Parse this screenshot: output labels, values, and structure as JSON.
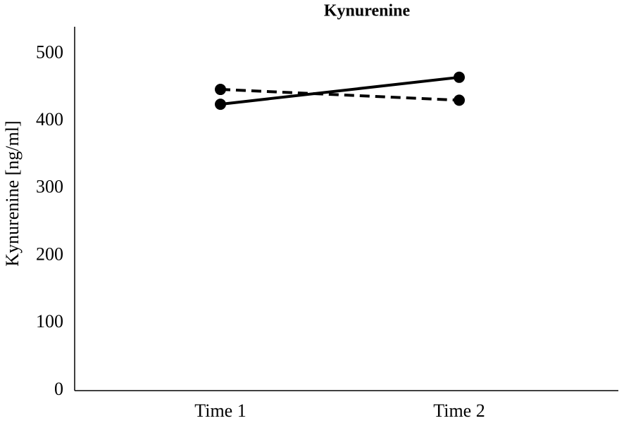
{
  "chart_data": {
    "type": "line",
    "title": "Kynurenine",
    "ylabel": "Kynurenine [ng/ml]",
    "categories": [
      "Time 1",
      "Time 2"
    ],
    "series": [
      {
        "color": "#000000",
        "dashed": false,
        "values": [
          425,
          465
        ]
      },
      {
        "color": "#000000",
        "dashed": true,
        "values": [
          447,
          431
        ]
      }
    ],
    "ylim": [
      0,
      540
    ],
    "yticks": [
      0,
      100,
      200,
      300,
      400,
      500
    ],
    "grid": false,
    "markers": true
  }
}
